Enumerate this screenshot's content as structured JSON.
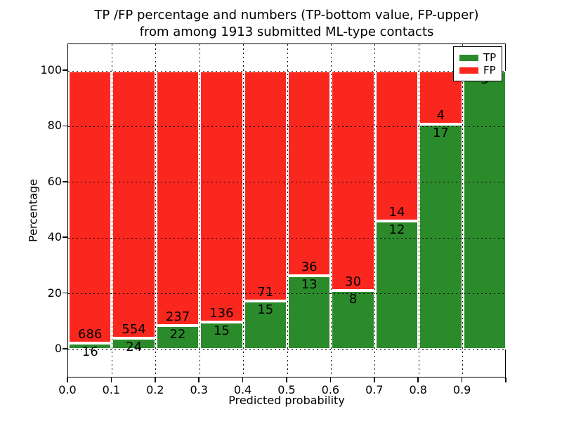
{
  "figure": {
    "title_line1": "TP /FP percentage and numbers (TP-bottom value, FP-upper)",
    "title_line2": "from among 1913 submitted ML-type contacts",
    "xlabel": "Predicted probability",
    "ylabel": "Percentage"
  },
  "legend": {
    "items": [
      {
        "label": "TP",
        "color": "#2b8b2b"
      },
      {
        "label": "FP",
        "color": "#fa271e"
      }
    ],
    "position": "upper right"
  },
  "chart_data": {
    "type": "bar",
    "subtype": "stacked-percentage-histogram",
    "title": "TP /FP percentage and numbers (TP-bottom value, FP-upper) from among 1913 submitted ML-type contacts",
    "xlabel": "Predicted probability",
    "ylabel": "Percentage",
    "total_contacts": 1913,
    "bin_width": 0.1,
    "x_bin_starts": [
      0.0,
      0.1,
      0.2,
      0.3,
      0.4,
      0.5,
      0.6,
      0.7,
      0.8,
      0.9
    ],
    "series": [
      {
        "name": "TP",
        "color": "#2b8b2b",
        "counts": [
          16,
          24,
          22,
          15,
          15,
          13,
          8,
          12,
          17,
          3
        ]
      },
      {
        "name": "FP",
        "color": "#fa271e",
        "counts": [
          686,
          554,
          237,
          136,
          71,
          36,
          30,
          14,
          4,
          0
        ]
      }
    ],
    "bar_value_labels_tp": [
      "16",
      "24",
      "22",
      "15",
      "15",
      "13",
      "8",
      "12",
      "17",
      "3"
    ],
    "bar_value_labels_fp": [
      "686",
      "554",
      "237",
      "136",
      "71",
      "36",
      "30",
      "14",
      "4",
      ""
    ],
    "xticks": [
      "0.0",
      "0.1",
      "0.2",
      "0.3",
      "0.4",
      "0.5",
      "0.6",
      "0.7",
      "0.8",
      "0.9"
    ],
    "yticks": [
      0,
      20,
      40,
      60,
      80,
      100
    ],
    "xlim": [
      0.0,
      1.0
    ],
    "ylim": [
      -10.3,
      109.6
    ],
    "grid": "dotted-black",
    "bar_edge_color": "#ffffff",
    "legend_position": "upper right"
  },
  "colors": {
    "tp": "#2b8b2b",
    "fp": "#fa271e",
    "background": "#ffffff",
    "grid": "#000000",
    "bar_edge": "#ffffff",
    "text": "#000000"
  }
}
